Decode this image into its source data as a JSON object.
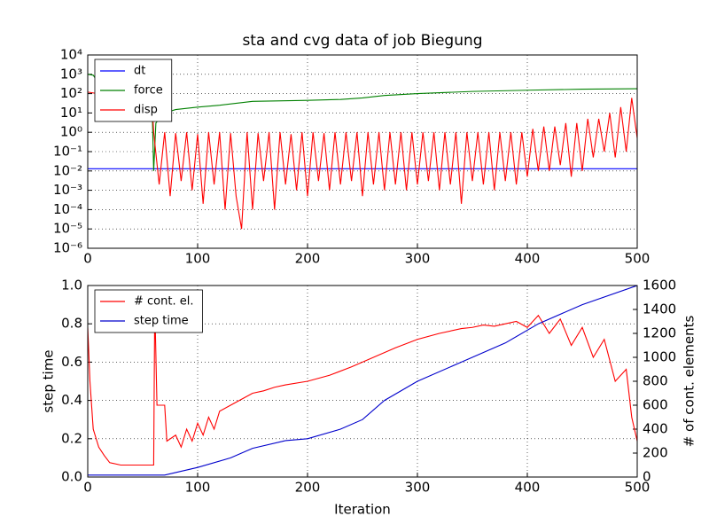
{
  "chart_data": [
    {
      "type": "line",
      "title": "sta and cvg data of job Biegung",
      "log_y": true,
      "grid": true,
      "legend": "upper left",
      "xlim": [
        0,
        500
      ],
      "xticks": [
        0,
        100,
        200,
        300,
        400,
        500
      ],
      "ylim": [
        1e-06,
        10000
      ],
      "yticks": [
        {
          "value": 1e-06,
          "label": "10⁻⁶"
        },
        {
          "value": 1e-05,
          "label": "10⁻⁵"
        },
        {
          "value": 0.0001,
          "label": "10⁻⁴"
        },
        {
          "value": 0.001,
          "label": "10⁻³"
        },
        {
          "value": 0.01,
          "label": "10⁻²"
        },
        {
          "value": 0.1,
          "label": "10⁻¹"
        },
        {
          "value": 1,
          "label": "10⁰"
        },
        {
          "value": 10,
          "label": "10¹"
        },
        {
          "value": 100,
          "label": "10²"
        },
        {
          "value": 1000,
          "label": "10³"
        },
        {
          "value": 10000,
          "label": "10⁴"
        }
      ],
      "series": [
        {
          "name": "dt",
          "color": "#0000ff",
          "x": [
            0,
            500
          ],
          "values": [
            0.013,
            0.013
          ]
        },
        {
          "name": "force",
          "color": "#008000",
          "x": [
            0,
            5,
            8,
            58,
            60,
            62,
            65,
            70,
            80,
            100,
            120,
            150,
            200,
            230,
            250,
            270,
            300,
            350,
            400,
            450,
            500
          ],
          "values": [
            1000,
            900,
            500,
            500,
            0.01,
            3,
            5,
            10,
            15,
            20,
            25,
            40,
            45,
            50,
            60,
            80,
            100,
            130,
            150,
            170,
            180
          ]
        },
        {
          "name": "disp",
          "color": "#ff0000",
          "x": [
            0,
            20,
            40,
            58,
            60,
            65,
            70,
            75,
            80,
            85,
            90,
            95,
            100,
            105,
            110,
            115,
            120,
            125,
            130,
            135,
            140,
            145,
            150,
            155,
            160,
            165,
            170,
            175,
            180,
            185,
            190,
            195,
            200,
            205,
            210,
            215,
            220,
            225,
            230,
            235,
            240,
            245,
            250,
            255,
            260,
            265,
            270,
            275,
            280,
            285,
            290,
            295,
            300,
            305,
            310,
            315,
            320,
            325,
            330,
            335,
            340,
            345,
            350,
            355,
            360,
            365,
            370,
            375,
            380,
            385,
            390,
            395,
            400,
            405,
            410,
            415,
            420,
            425,
            430,
            435,
            440,
            445,
            450,
            455,
            460,
            465,
            470,
            475,
            480,
            485,
            490,
            495,
            500
          ],
          "values": [
            120,
            80,
            100,
            100,
            1,
            0.002,
            1,
            0.0005,
            0.9,
            0.003,
            1,
            0.001,
            0.8,
            0.0002,
            1,
            0.002,
            1,
            0.0001,
            0.9,
            0.0005,
            1e-05,
            1,
            0.0001,
            0.9,
            0.003,
            1,
            0.0001,
            1,
            0.002,
            0.8,
            0.001,
            1,
            0.0005,
            1,
            0.003,
            0.9,
            0.001,
            1,
            0.002,
            1,
            0.003,
            1,
            0.0005,
            1,
            0.002,
            1,
            0.001,
            1,
            0.002,
            1,
            0.001,
            1,
            0.002,
            1,
            0.003,
            1,
            0.001,
            1,
            0.002,
            1,
            0.0002,
            1,
            0.003,
            1,
            0.002,
            1,
            0.001,
            1,
            0.003,
            1,
            0.002,
            1,
            0.005,
            1.5,
            0.01,
            2,
            0.01,
            2,
            0.02,
            3,
            0.005,
            3,
            0.01,
            5,
            0.05,
            5,
            0.1,
            10,
            0.05,
            20,
            0.1,
            60,
            0.5
          ]
        }
      ]
    },
    {
      "type": "line",
      "x_label": "Iteration",
      "y_label": "step time",
      "y2_label": "# of cont. elements",
      "grid": true,
      "legend": "upper left",
      "xlim": [
        0,
        500
      ],
      "xticks": [
        0,
        100,
        200,
        300,
        400,
        500
      ],
      "ylim": [
        0,
        1
      ],
      "yticks": [
        {
          "value": 0,
          "label": "0.0"
        },
        {
          "value": 0.2,
          "label": "0.2"
        },
        {
          "value": 0.4,
          "label": "0.4"
        },
        {
          "value": 0.6,
          "label": "0.6"
        },
        {
          "value": 0.8,
          "label": "0.8"
        },
        {
          "value": 1,
          "label": "1.0"
        }
      ],
      "y2lim": [
        0,
        1600
      ],
      "y2ticks": [
        0,
        200,
        400,
        600,
        800,
        1000,
        1200,
        1400,
        1600
      ],
      "series": [
        {
          "name": "# cont. el.",
          "color": "#ff0000",
          "axis": "y2",
          "x": [
            0,
            2,
            5,
            10,
            15,
            20,
            30,
            58,
            60,
            61,
            63,
            65,
            70,
            72,
            80,
            85,
            90,
            95,
            100,
            105,
            110,
            115,
            120,
            130,
            140,
            150,
            160,
            170,
            180,
            200,
            220,
            240,
            260,
            280,
            300,
            320,
            340,
            350,
            360,
            370,
            380,
            390,
            400,
            410,
            420,
            430,
            440,
            450,
            460,
            470,
            480,
            490,
            495,
            500
          ],
          "values": [
            1250,
            800,
            400,
            250,
            180,
            120,
            100,
            100,
            100,
            1450,
            600,
            600,
            600,
            300,
            350,
            250,
            400,
            300,
            450,
            350,
            500,
            400,
            550,
            600,
            650,
            700,
            720,
            750,
            770,
            800,
            850,
            920,
            1000,
            1080,
            1150,
            1200,
            1240,
            1250,
            1270,
            1260,
            1280,
            1300,
            1250,
            1350,
            1200,
            1320,
            1100,
            1250,
            1000,
            1150,
            800,
            900,
            500,
            300
          ]
        },
        {
          "name": "step time",
          "color": "#0000cc",
          "x": [
            0,
            60,
            70,
            100,
            130,
            150,
            180,
            200,
            230,
            250,
            270,
            300,
            340,
            380,
            410,
            450,
            500
          ],
          "values": [
            0.01,
            0.01,
            0.01,
            0.05,
            0.1,
            0.15,
            0.19,
            0.2,
            0.25,
            0.3,
            0.4,
            0.5,
            0.6,
            0.7,
            0.8,
            0.9,
            1
          ]
        }
      ]
    }
  ]
}
